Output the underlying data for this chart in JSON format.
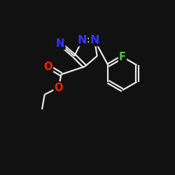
{
  "bg_color": "#111111",
  "bond_color": "#e8e8e8",
  "atom_colors": {
    "N": "#3333ff",
    "O": "#ff2200",
    "F": "#44cc44",
    "C": "#e8e8e8"
  },
  "bond_width": 1.6,
  "font_size": 10.5,
  "figsize": [
    2.5,
    2.5
  ],
  "dpi": 100
}
